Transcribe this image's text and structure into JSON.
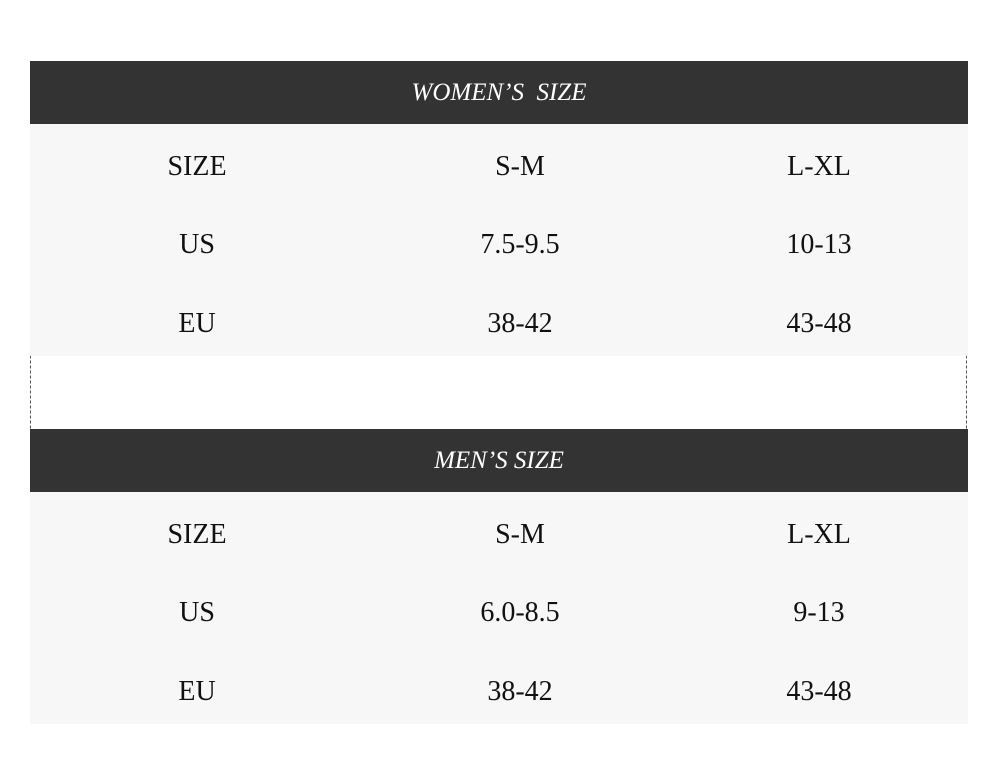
{
  "tables": [
    {
      "title": "WOMEN’S  SIZE",
      "rows": [
        [
          "SIZE",
          "S-M",
          "L-XL"
        ],
        [
          "US",
          "7.5-9.5",
          "10-13"
        ],
        [
          "EU",
          "38-42",
          "43-48"
        ]
      ]
    },
    {
      "title": "MEN’S SIZE",
      "rows": [
        [
          "SIZE",
          "S-M",
          "L-XL"
        ],
        [
          "US",
          "6.0-8.5",
          "9-13"
        ],
        [
          "EU",
          "38-42",
          "43-48"
        ]
      ]
    }
  ],
  "colors": {
    "header_bg": "#333333",
    "body_bg": "#f7f7f7"
  }
}
